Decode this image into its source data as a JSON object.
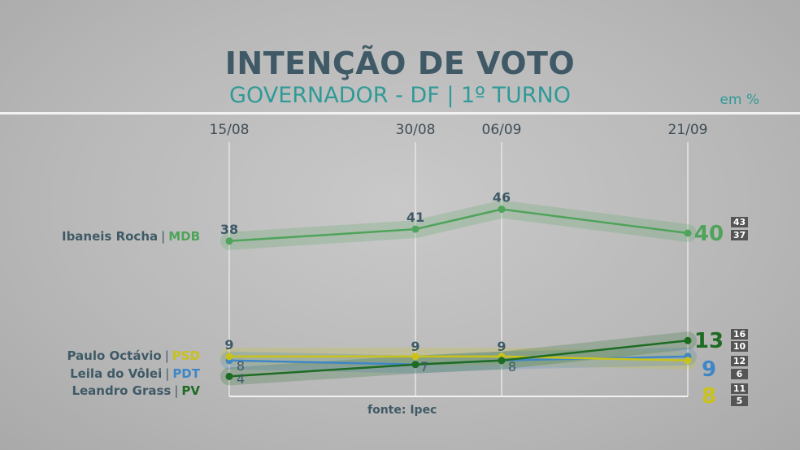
{
  "title": "INTENÇÃO DE VOTO",
  "subtitle": "GOVERNADOR - DF | 1º TURNO",
  "unit": "em %",
  "source": "fonte: Ipec",
  "chart_data": {
    "type": "line",
    "x": [
      "15/08",
      "30/08",
      "06/09",
      "21/09"
    ],
    "series": [
      {
        "name": "Ibaneis Rocha",
        "party": "MDB",
        "color": "#4fa35a",
        "values": [
          38,
          41,
          46,
          40
        ],
        "range": [
          "43",
          "37"
        ]
      },
      {
        "name": "Paulo Octávio",
        "party": "PSD",
        "color": "#c9c21a",
        "values": [
          9,
          9,
          9,
          8
        ],
        "range": [
          "11",
          "5"
        ]
      },
      {
        "name": "Leila do Vôlei",
        "party": "PDT",
        "color": "#3f86c7",
        "values": [
          8,
          7,
          8,
          9
        ],
        "range": [
          "12",
          "6"
        ]
      },
      {
        "name": "Leandro Grass",
        "party": "PV",
        "color": "#1e6b23",
        "values": [
          4,
          7,
          8,
          13
        ],
        "range": [
          "16",
          "10"
        ]
      }
    ]
  }
}
